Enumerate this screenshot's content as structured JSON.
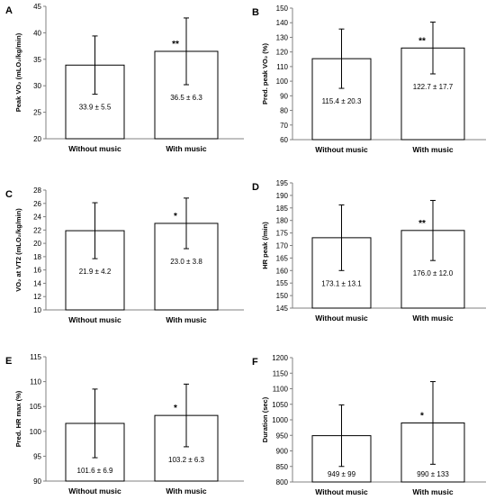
{
  "chart_data": [
    {
      "type": "bar",
      "panel": "A",
      "ylabel": "Peak VO₂ (mLO₂/kg/min)",
      "categories": [
        "Without music",
        "With music"
      ],
      "values": [
        33.9,
        36.5
      ],
      "errors": [
        5.5,
        6.3
      ],
      "value_labels": [
        "33.9 ± 5.5",
        "36.5 ± 6.3"
      ],
      "significance": [
        "",
        "**"
      ],
      "ylim": [
        20,
        45
      ],
      "yticks": [
        20,
        25,
        30,
        35,
        40,
        45
      ]
    },
    {
      "type": "bar",
      "panel": "B",
      "ylabel": "Pred. peak VO₂ (%)",
      "categories": [
        "Without music",
        "With music"
      ],
      "values": [
        115.4,
        122.7
      ],
      "errors": [
        20.3,
        17.7
      ],
      "value_labels": [
        "115.4 ± 20.3",
        "122.7 ± 17.7"
      ],
      "significance": [
        "",
        "**"
      ],
      "ylim": [
        60,
        150
      ],
      "yticks": [
        60,
        70,
        80,
        90,
        100,
        110,
        120,
        130,
        140,
        150
      ]
    },
    {
      "type": "bar",
      "panel": "C",
      "ylabel": "VO₂ at VT2 (mLO₂/kg/min)",
      "categories": [
        "Without music",
        "With music"
      ],
      "values": [
        21.9,
        23.0
      ],
      "errors": [
        4.2,
        3.8
      ],
      "value_labels": [
        "21.9 ± 4.2",
        "23.0 ± 3.8"
      ],
      "significance": [
        "",
        "*"
      ],
      "ylim": [
        10,
        28
      ],
      "yticks": [
        10,
        12,
        14,
        16,
        18,
        20,
        22,
        24,
        26,
        28
      ]
    },
    {
      "type": "bar",
      "panel": "D",
      "ylabel": "HR peak (/min)",
      "categories": [
        "Without music",
        "With music"
      ],
      "values": [
        173.1,
        176.0
      ],
      "errors": [
        13.1,
        12.0
      ],
      "value_labels": [
        "173.1 ± 13.1",
        "176.0 ± 12.0"
      ],
      "significance": [
        "",
        "**"
      ],
      "ylim": [
        145,
        195
      ],
      "yticks": [
        145,
        150,
        155,
        160,
        165,
        170,
        175,
        180,
        185,
        190,
        195
      ]
    },
    {
      "type": "bar",
      "panel": "E",
      "ylabel": "Pred. HR max (%)",
      "categories": [
        "Without music",
        "With music"
      ],
      "values": [
        101.6,
        103.2
      ],
      "errors": [
        6.9,
        6.3
      ],
      "value_labels": [
        "101.6 ± 6.9",
        "103.2 ± 6.3"
      ],
      "significance": [
        "",
        "*"
      ],
      "ylim": [
        90,
        115
      ],
      "yticks": [
        90,
        95,
        100,
        105,
        110,
        115
      ]
    },
    {
      "type": "bar",
      "panel": "F",
      "ylabel": "Duration (sec)",
      "categories": [
        "Without music",
        "With music"
      ],
      "values": [
        949,
        990
      ],
      "errors": [
        99,
        133
      ],
      "value_labels": [
        "949 ± 99",
        "990 ± 133"
      ],
      "significance": [
        "",
        "*"
      ],
      "ylim": [
        800,
        1200
      ],
      "yticks": [
        800,
        850,
        900,
        950,
        1000,
        1050,
        1100,
        1150,
        1200
      ]
    }
  ],
  "colors": {
    "bar_fill": "#ffffff",
    "bar_stroke": "#000000",
    "axis": "#808080"
  }
}
